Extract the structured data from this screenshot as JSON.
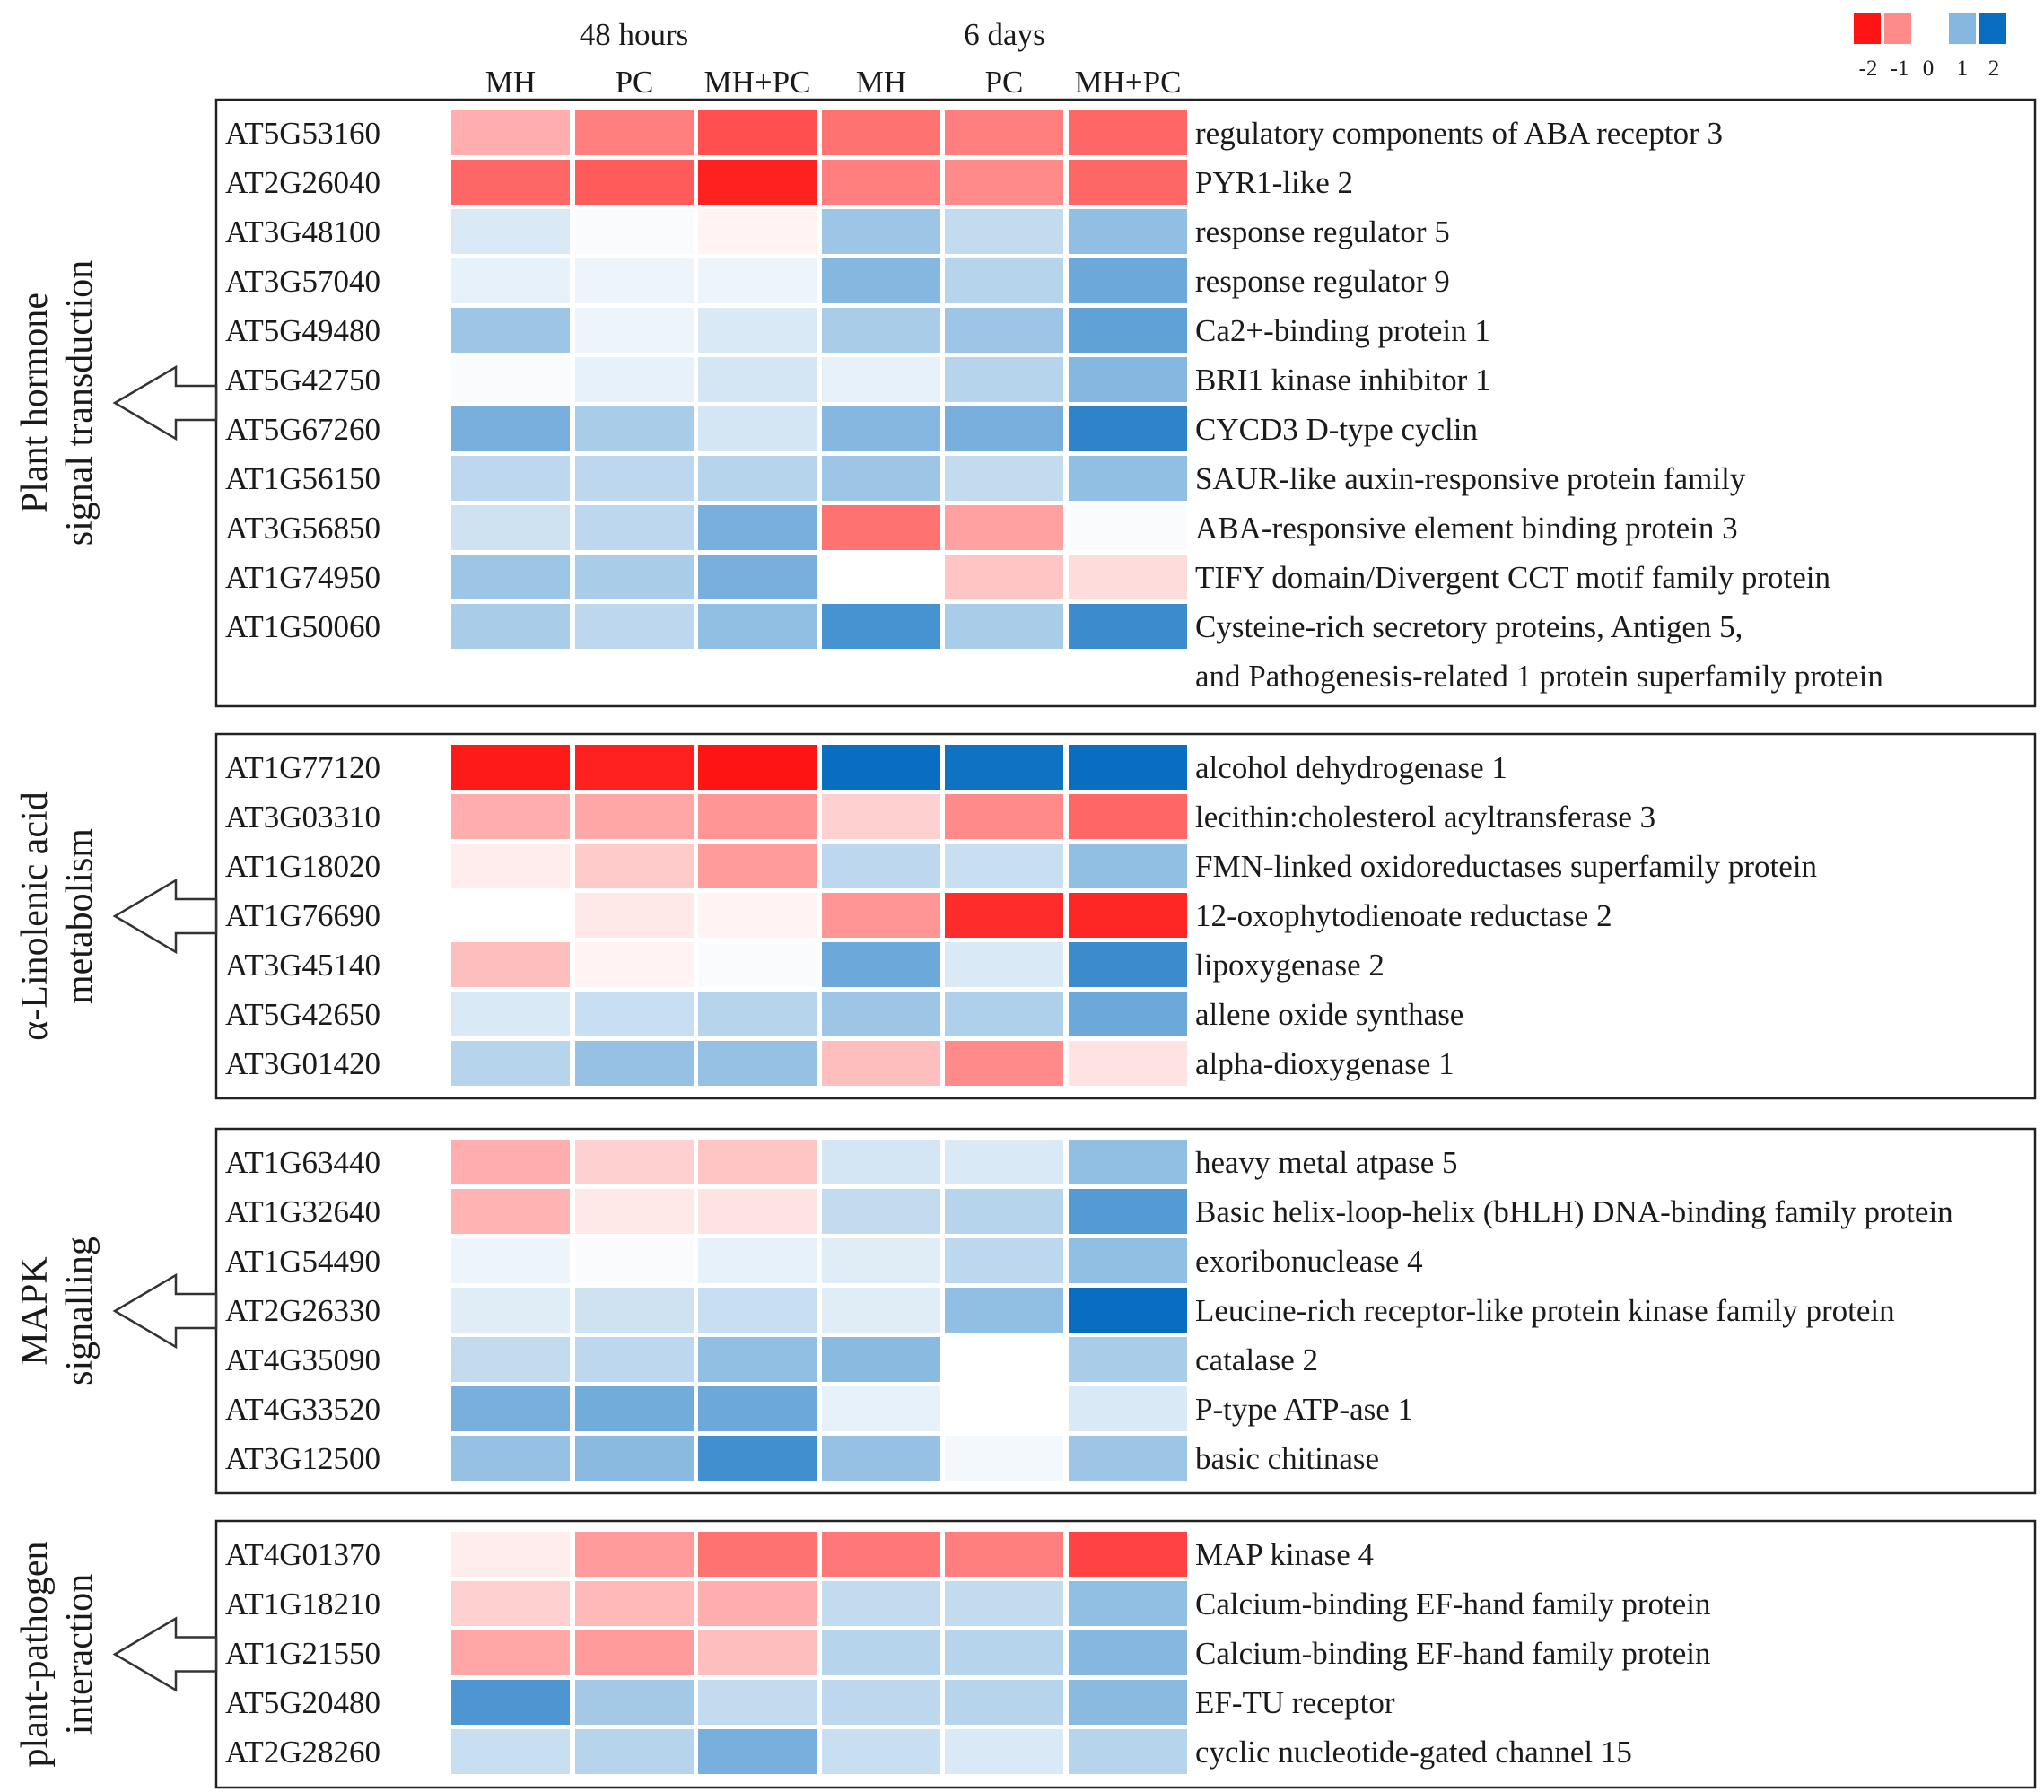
{
  "chart_data": {
    "type": "heatmap",
    "groups": [
      {
        "label": "48 hours",
        "columns": [
          0,
          1,
          2
        ]
      },
      {
        "label": "6 days",
        "columns": [
          3,
          4,
          5
        ]
      }
    ],
    "columns": [
      "MH",
      "PC",
      "MH+PC",
      "MH",
      "PC",
      "MH+PC"
    ],
    "legend": {
      "ticks": [
        "-2",
        "-1",
        "0",
        "1",
        "2"
      ],
      "swatch_values": [
        -2,
        -1,
        1,
        2
      ],
      "low_color": "#ff1414",
      "mid_color": "#ffffff",
      "high_color": "#0a6ec0",
      "range": [
        -2,
        2
      ]
    },
    "sections": [
      {
        "label_lines": [
          "Plant hormone",
          "signal transduction"
        ],
        "rows": [
          {
            "gene": "AT5G53160",
            "desc": [
              "regulatory components of ABA receptor 3"
            ],
            "values": [
              -0.7,
              -1.1,
              -1.5,
              -1.2,
              -1.1,
              -1.3
            ]
          },
          {
            "gene": "AT2G26040",
            "desc": [
              "PYR1-like 2"
            ],
            "values": [
              -1.3,
              -1.4,
              -1.9,
              -1.1,
              -1.0,
              -1.3
            ]
          },
          {
            "gene": "AT3G48100",
            "desc": [
              "response regulator 5"
            ],
            "values": [
              0.3,
              0.05,
              -0.1,
              0.8,
              0.5,
              0.9
            ]
          },
          {
            "gene": "AT3G57040",
            "desc": [
              "response regulator 9"
            ],
            "values": [
              0.2,
              0.15,
              0.15,
              1.0,
              0.6,
              1.2
            ]
          },
          {
            "gene": "AT5G49480",
            "desc": [
              "Ca2+-binding protein 1"
            ],
            "values": [
              0.8,
              0.15,
              0.3,
              0.7,
              0.8,
              1.3
            ]
          },
          {
            "gene": "AT5G42750",
            "desc": [
              "BRI1 kinase inhibitor 1"
            ],
            "values": [
              0.05,
              0.2,
              0.35,
              0.2,
              0.6,
              1.0
            ]
          },
          {
            "gene": "AT5G67260",
            "desc": [
              "CYCD3 D-type cyclin"
            ],
            "values": [
              1.1,
              0.7,
              0.35,
              1.0,
              1.1,
              1.7
            ]
          },
          {
            "gene": "AT1G56150",
            "desc": [
              "SAUR-like auxin-responsive protein family"
            ],
            "values": [
              0.55,
              0.55,
              0.6,
              0.8,
              0.5,
              0.9
            ]
          },
          {
            "gene": "AT3G56850",
            "desc": [
              "ABA-responsive element binding protein 3"
            ],
            "values": [
              0.4,
              0.55,
              1.1,
              -1.2,
              -0.8,
              0.05
            ]
          },
          {
            "gene": "AT1G74950",
            "desc": [
              "TIFY domain/Divergent CCT motif family protein"
            ],
            "values": [
              0.8,
              0.7,
              1.1,
              0.0,
              -0.5,
              -0.3
            ]
          },
          {
            "gene": "AT1G50060",
            "desc": [
              "Cysteine-rich secretory proteins, Antigen 5,",
              "and Pathogenesis-related 1 protein superfamily protein"
            ],
            "values": [
              0.7,
              0.55,
              0.9,
              1.5,
              0.7,
              1.6
            ]
          }
        ]
      },
      {
        "label_lines": [
          "α-Linolenic acid",
          "metabolism"
        ],
        "rows": [
          {
            "gene": "AT1G77120",
            "desc": [
              "alcohol dehydrogenase 1"
            ],
            "values": [
              -1.95,
              -1.9,
              -2.0,
              2.0,
              1.95,
              2.0
            ]
          },
          {
            "gene": "AT3G03310",
            "desc": [
              "lecithin:cholesterol acyltransferase 3"
            ],
            "values": [
              -0.7,
              -0.75,
              -0.9,
              -0.4,
              -1.0,
              -1.3
            ]
          },
          {
            "gene": "AT1G18020",
            "desc": [
              "FMN-linked oxidoreductases superfamily protein"
            ],
            "values": [
              -0.15,
              -0.45,
              -0.85,
              0.55,
              0.45,
              0.9
            ]
          },
          {
            "gene": "AT1G76690",
            "desc": [
              "12-oxophytodienoate reductase 2"
            ],
            "values": [
              0.0,
              -0.2,
              -0.1,
              -0.9,
              -1.8,
              -1.85
            ]
          },
          {
            "gene": "AT3G45140",
            "desc": [
              "lipoxygenase 2"
            ],
            "values": [
              -0.55,
              -0.1,
              0.05,
              1.2,
              0.3,
              1.6
            ]
          },
          {
            "gene": "AT5G42650",
            "desc": [
              "allene oxide synthase"
            ],
            "values": [
              0.3,
              0.45,
              0.6,
              0.8,
              0.65,
              1.2
            ]
          },
          {
            "gene": "AT3G01420",
            "desc": [
              "alpha-dioxygenase 1"
            ],
            "values": [
              0.6,
              0.85,
              0.85,
              -0.55,
              -1.0,
              -0.25
            ]
          }
        ]
      },
      {
        "label_lines": [
          "MAPK",
          "signalling"
        ],
        "rows": [
          {
            "gene": "AT1G63440",
            "desc": [
              "heavy metal atpase 5"
            ],
            "values": [
              -0.7,
              -0.4,
              -0.5,
              0.35,
              0.3,
              0.9
            ]
          },
          {
            "gene": "AT1G32640",
            "desc": [
              "Basic helix-loop-helix (bHLH) DNA-binding family protein"
            ],
            "values": [
              -0.65,
              -0.2,
              -0.25,
              0.5,
              0.6,
              1.4
            ]
          },
          {
            "gene": "AT1G54490",
            "desc": [
              "exoribonuclease 4"
            ],
            "values": [
              0.15,
              0.05,
              0.2,
              0.25,
              0.55,
              0.9
            ]
          },
          {
            "gene": "AT2G26330",
            "desc": [
              "Leucine-rich receptor-like protein kinase family protein"
            ],
            "values": [
              0.25,
              0.4,
              0.45,
              0.25,
              0.9,
              2.0
            ]
          },
          {
            "gene": "AT4G35090",
            "desc": [
              "catalase 2"
            ],
            "values": [
              0.5,
              0.55,
              0.9,
              0.95,
              0.0,
              0.7
            ]
          },
          {
            "gene": "AT4G33520",
            "desc": [
              "P-type ATP-ase 1"
            ],
            "values": [
              1.1,
              1.15,
              1.2,
              0.2,
              0.0,
              0.3
            ]
          },
          {
            "gene": "AT3G12500",
            "desc": [
              "basic chitinase"
            ],
            "values": [
              0.85,
              0.95,
              1.55,
              0.85,
              0.1,
              0.8
            ]
          }
        ]
      },
      {
        "label_lines": [
          "plant-pathogen",
          "interaction"
        ],
        "rows": [
          {
            "gene": "AT4G01370",
            "desc": [
              "MAP kinase 4"
            ],
            "values": [
              -0.15,
              -0.85,
              -1.2,
              -1.15,
              -1.1,
              -1.6
            ]
          },
          {
            "gene": "AT1G18210",
            "desc": [
              "Calcium-binding EF-hand family protein"
            ],
            "values": [
              -0.4,
              -0.6,
              -0.7,
              0.5,
              0.5,
              0.9
            ]
          },
          {
            "gene": "AT1G21550",
            "desc": [
              "Calcium-binding EF-hand family protein"
            ],
            "values": [
              -0.75,
              -0.85,
              -0.55,
              0.6,
              0.6,
              1.0
            ]
          },
          {
            "gene": "AT5G20480",
            "desc": [
              "EF-TU receptor"
            ],
            "values": [
              1.45,
              0.75,
              0.5,
              0.55,
              0.6,
              0.95
            ]
          },
          {
            "gene": "AT2G28260",
            "desc": [
              "cyclic nucleotide-gated channel 15"
            ],
            "values": [
              0.45,
              0.6,
              1.1,
              0.45,
              0.3,
              0.6
            ]
          }
        ]
      }
    ]
  }
}
